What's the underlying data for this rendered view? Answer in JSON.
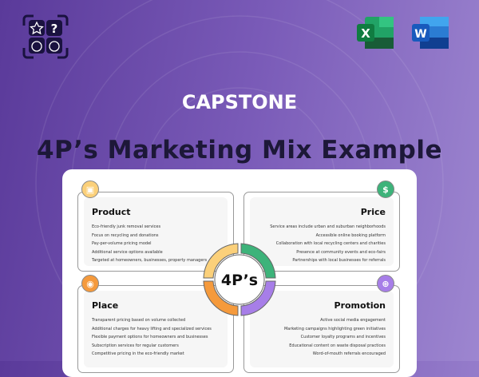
{
  "header": {
    "subtitle": "CAPSTONE",
    "title": "4P’s Marketing Mix Example"
  },
  "apps": [
    {
      "name": "Excel",
      "letter": "X",
      "color": "#1e7145"
    },
    {
      "name": "Word",
      "letter": "W",
      "color": "#2b5bc4"
    }
  ],
  "diagram": {
    "center": "4P’s",
    "quadrants": [
      {
        "title": "Product",
        "color": "#fbd07a",
        "icon": "box-icon",
        "items": [
          "Eco-friendly junk removal services",
          "Focus on recycling and donations",
          "Pay-per-volume pricing model",
          "Additional service options available",
          "Targeted at homeowners, businesses, property managers"
        ]
      },
      {
        "title": "Price",
        "color": "#3db37a",
        "icon": "dollar-icon",
        "items": [
          "Service areas include urban and suburban neighborhoods",
          "Accessible online booking platform",
          "Collaboration with local recycling centers and charities",
          "Presence at community events and eco-fairs",
          "Partnerships with local businesses for referrals"
        ]
      },
      {
        "title": "Place",
        "color": "#f59a3c",
        "icon": "location-icon",
        "items": [
          "Transparent pricing based on volume collected",
          "Additional charges for heavy lifting and specialized services",
          "Flexible payment options for homeowners and businesses",
          "Subscription services for regular customers",
          "Competitive pricing in the eco-friendly market"
        ]
      },
      {
        "title": "Promotion",
        "color": "#a77ee8",
        "icon": "target-icon",
        "items": [
          "Active social media engagement",
          "Marketing campaigns highlighting green initiatives",
          "Customer loyalty programs and incentives",
          "Educational content on waste disposal practices",
          "Word-of-mouth referrals encouraged"
        ]
      }
    ]
  }
}
